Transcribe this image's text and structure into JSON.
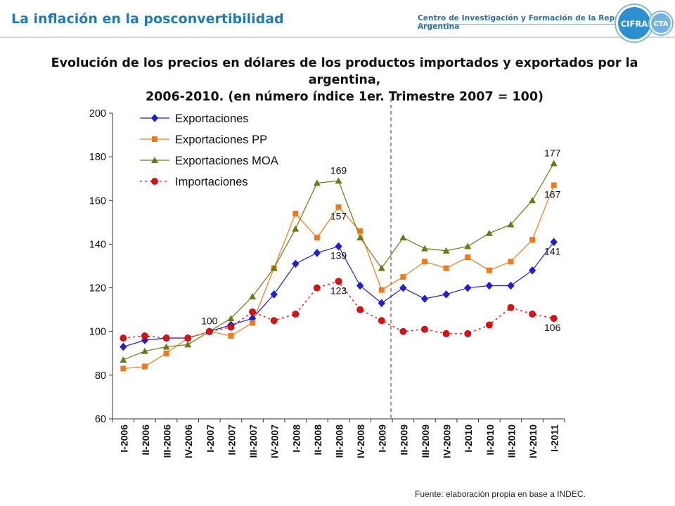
{
  "header": {
    "title": "La inflación en la posconvertibilidad",
    "org": "Centro de Investigación y Formación de la República Argentina",
    "logo_left": "CIFRA",
    "logo_right": "CTA"
  },
  "footer": {
    "source": "Fuente: elaboración propia en base a INDEC."
  },
  "colors": {
    "exportaciones": "#1f1fd1",
    "exportaciones_pp": "#f07a1a",
    "exportaciones_moa": "#6b7a12",
    "importaciones": "#e01010"
  },
  "chart_data": {
    "type": "line",
    "title_lines": [
      "Evolución de los precios en dólares de los productos importados y exportados por la argentina,",
      "2006-2010. (en número índice 1er. Trimestre 2007 = 100)"
    ],
    "categories": [
      "I-2006",
      "II-2006",
      "III-2006",
      "IV-2006",
      "I-2007",
      "II-2007",
      "III-2007",
      "IV-2007",
      "I-2008",
      "II-2008",
      "III-2008",
      "IV-2008",
      "I-2009",
      "II-2009",
      "III-2009",
      "IV-2009",
      "I-2010",
      "II-2010",
      "III-2010",
      "IV-2010",
      "I-2011"
    ],
    "ylim": [
      60,
      200
    ],
    "yticks": [
      60,
      80,
      100,
      120,
      140,
      160,
      180,
      200
    ],
    "legend_position": "top-left",
    "reference_line": {
      "after_category": "I-2009",
      "style": "dashed"
    },
    "series": [
      {
        "name": "Exportaciones",
        "marker": "diamond",
        "line": "solid",
        "values": [
          93,
          96,
          97,
          97,
          100,
          103,
          106,
          117,
          131,
          136,
          139,
          121,
          113,
          120,
          115,
          117,
          120,
          121,
          121,
          128,
          141
        ]
      },
      {
        "name": "Exportaciones PP",
        "marker": "square",
        "line": "solid",
        "values": [
          83,
          84,
          90,
          97,
          100,
          98,
          104,
          129,
          154,
          143,
          157,
          146,
          119,
          125,
          132,
          129,
          134,
          128,
          132,
          142,
          167
        ]
      },
      {
        "name": "Exportaciones MOA",
        "marker": "triangle",
        "line": "solid",
        "values": [
          87,
          91,
          93,
          94,
          100,
          106,
          116,
          129,
          147,
          168,
          169,
          143,
          129,
          143,
          138,
          137,
          139,
          145,
          149,
          160,
          177
        ]
      },
      {
        "name": "Importaciones",
        "marker": "circle",
        "line": "dotted",
        "values": [
          97,
          98,
          97,
          97,
          100,
          102,
          109,
          105,
          108,
          120,
          123,
          110,
          105,
          100,
          101,
          99,
          99,
          103,
          111,
          108,
          106
        ]
      }
    ],
    "annotations": [
      {
        "text": "100",
        "category": "I-2007",
        "value": 100,
        "position": "above"
      },
      {
        "text": "169",
        "category": "III-2008",
        "value": 169,
        "position": "above"
      },
      {
        "text": "157",
        "category": "III-2008",
        "value": 157,
        "position": "below"
      },
      {
        "text": "139",
        "category": "III-2008",
        "value": 139,
        "position": "below"
      },
      {
        "text": "123",
        "category": "III-2008",
        "value": 123,
        "position": "below"
      },
      {
        "text": "177",
        "category": "I-2011",
        "value": 177,
        "position": "above"
      },
      {
        "text": "167",
        "category": "I-2011",
        "value": 167,
        "position": "below"
      },
      {
        "text": "141",
        "category": "I-2011",
        "value": 141,
        "position": "below"
      },
      {
        "text": "106",
        "category": "I-2011",
        "value": 106,
        "position": "below"
      }
    ]
  }
}
